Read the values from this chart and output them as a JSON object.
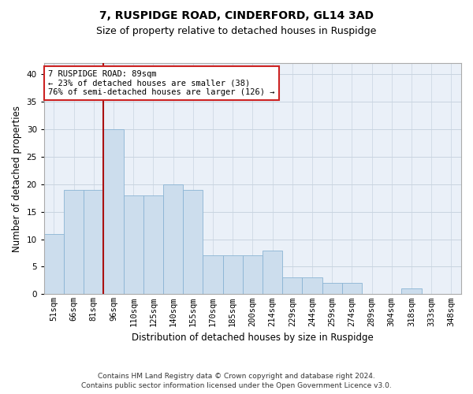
{
  "title1": "7, RUSPIDGE ROAD, CINDERFORD, GL14 3AD",
  "title2": "Size of property relative to detached houses in Ruspidge",
  "xlabel": "Distribution of detached houses by size in Ruspidge",
  "ylabel": "Number of detached properties",
  "bar_color": "#ccdded",
  "bar_edge_color": "#8ab4d4",
  "grid_color": "#c8d4e0",
  "background_color": "#eaf0f8",
  "annotation_box_color": "#ffffff",
  "annotation_border_color": "#cc2222",
  "vline_color": "#aa1111",
  "categories": [
    "51sqm",
    "66sqm",
    "81sqm",
    "96sqm",
    "110sqm",
    "125sqm",
    "140sqm",
    "155sqm",
    "170sqm",
    "185sqm",
    "200sqm",
    "214sqm",
    "229sqm",
    "244sqm",
    "259sqm",
    "274sqm",
    "289sqm",
    "304sqm",
    "318sqm",
    "333sqm",
    "348sqm"
  ],
  "values": [
    11,
    19,
    19,
    30,
    18,
    18,
    20,
    19,
    7,
    7,
    7,
    8,
    3,
    3,
    2,
    2,
    0,
    0,
    1,
    0,
    0
  ],
  "highlight_index": 3,
  "ylim": [
    0,
    42
  ],
  "yticks": [
    0,
    5,
    10,
    15,
    20,
    25,
    30,
    35,
    40
  ],
  "annotation_text": "7 RUSPIDGE ROAD: 89sqm\n← 23% of detached houses are smaller (38)\n76% of semi-detached houses are larger (126) →",
  "footer1": "Contains HM Land Registry data © Crown copyright and database right 2024.",
  "footer2": "Contains public sector information licensed under the Open Government Licence v3.0.",
  "title1_fontsize": 10,
  "title2_fontsize": 9,
  "xlabel_fontsize": 8.5,
  "ylabel_fontsize": 8.5,
  "tick_fontsize": 7.5,
  "annotation_fontsize": 7.5,
  "footer_fontsize": 6.5
}
